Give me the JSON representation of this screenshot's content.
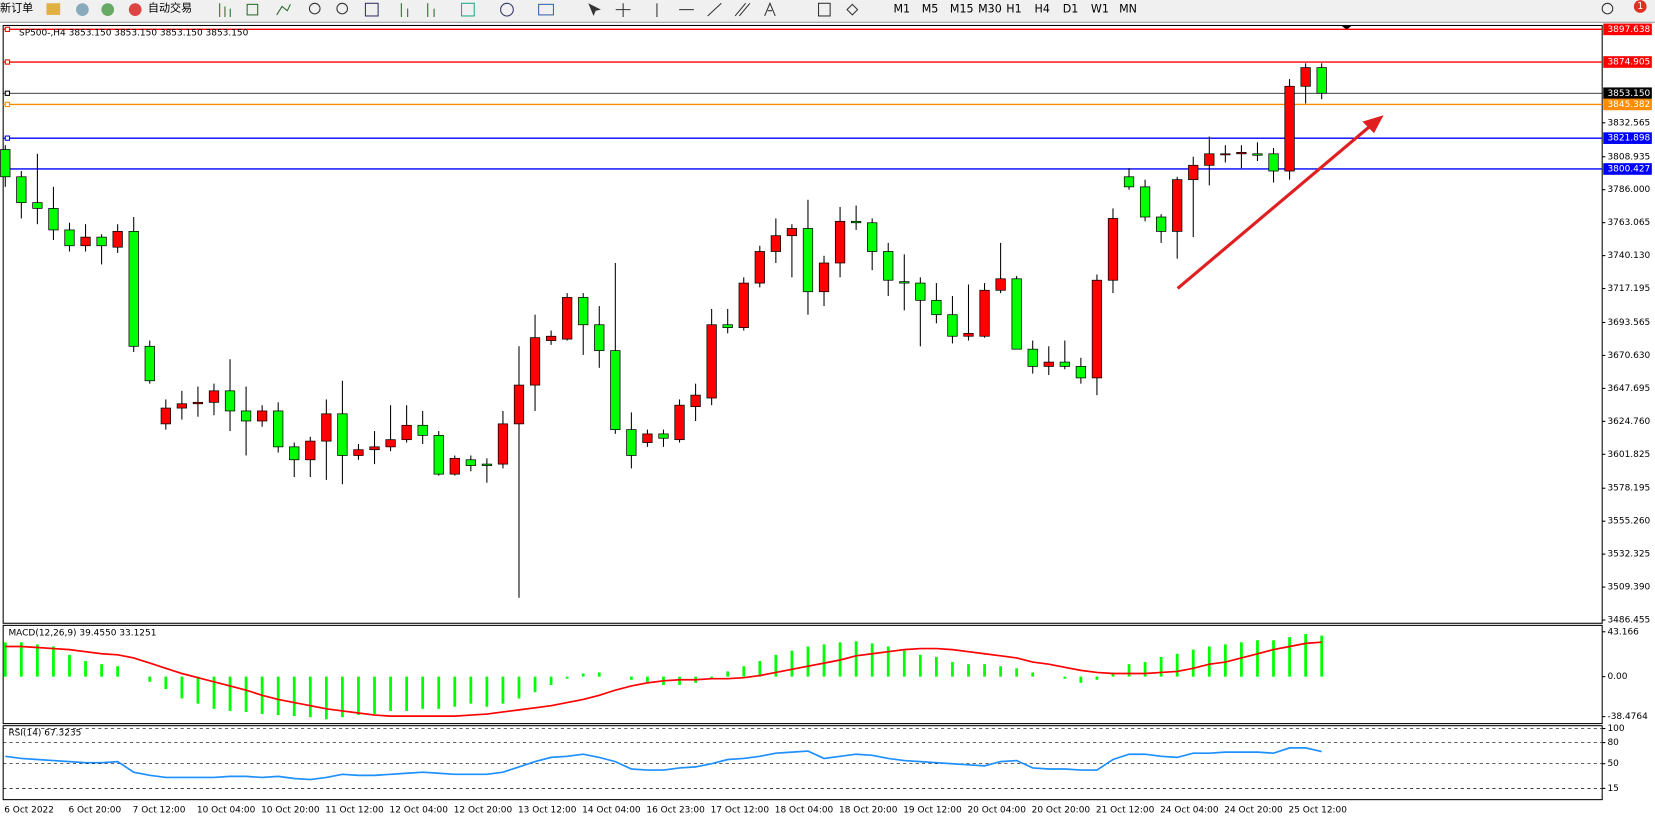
{
  "toolbar": {
    "new_order": "新订单",
    "auto_trading": "自动交易",
    "timeframes": [
      "M1",
      "M5",
      "M15",
      "M30",
      "H1",
      "H4",
      "D1",
      "W1",
      "MN"
    ],
    "notifications": "1"
  },
  "chart_data": [
    {
      "type": "candlestick",
      "title": "SP500-,H4  3853.150 3853.150 3853.150 3853.150",
      "categories": [
        "6 Oct 2022",
        null,
        null,
        null,
        "6 Oct 20:00",
        null,
        null,
        null,
        "7 Oct 12:00",
        null,
        null,
        null,
        "10 Oct 04:00",
        null,
        null,
        null,
        "10 Oct 20:00",
        null,
        null,
        null,
        "11 Oct 12:00",
        null,
        null,
        null,
        "12 Oct 04:00",
        null,
        null,
        null,
        "12 Oct 20:00",
        null,
        null,
        null,
        "13 Oct 12:00",
        null,
        null,
        null,
        "14 Oct 04:00",
        null,
        null,
        null,
        "16 Oct 23:00",
        null,
        null,
        null,
        "17 Oct 12:00",
        null,
        null,
        null,
        "18 Oct 04:00",
        null,
        null,
        null,
        "18 Oct 20:00",
        null,
        null,
        null,
        "19 Oct 12:00",
        null,
        null,
        null,
        "20 Oct 04:00",
        null,
        null,
        null,
        "20 Oct 20:00",
        null,
        null,
        null,
        "21 Oct 12:00",
        null,
        null,
        null,
        "24 Oct 04:00",
        null,
        null,
        null,
        "24 Oct 20:00",
        null,
        null,
        null,
        "25 Oct 12:00",
        null,
        null
      ],
      "open": [
        3814,
        3795,
        3777,
        3773,
        3758,
        3747,
        3753,
        3746,
        3757,
        3677,
        3623,
        3634,
        3637,
        3638,
        3646,
        3632,
        3625,
        3632,
        3607,
        3598,
        3611,
        3630,
        3601,
        3605,
        3607,
        3612,
        3622,
        3615,
        3588,
        3598,
        3595,
        3595,
        3623,
        3650,
        3681,
        3682,
        3711,
        3692,
        3674,
        3619,
        3610,
        3616,
        3612,
        3635,
        3641,
        3692,
        3690,
        3721,
        3743,
        3754,
        3759,
        3715,
        3735,
        3764,
        3763,
        3743,
        3722,
        3721,
        3709,
        3699,
        3684,
        3684,
        3716,
        3724,
        3675,
        3663,
        3666,
        3663,
        3655,
        3723,
        3795,
        3788,
        3767,
        3757,
        3793,
        3803,
        3811,
        3811,
        3811,
        3811,
        3799,
        3858,
        3871
      ],
      "high": [
        3817,
        3799,
        3811,
        3788,
        3763,
        3762,
        3755,
        3762,
        3767,
        3681,
        3640,
        3646,
        3649,
        3651,
        3668,
        3649,
        3636,
        3638,
        3610,
        3614,
        3640,
        3653,
        3609,
        3618,
        3636,
        3636,
        3632,
        3618,
        3601,
        3601,
        3599,
        3632,
        3677,
        3699,
        3688,
        3714,
        3714,
        3705,
        3735,
        3631,
        3619,
        3619,
        3640,
        3651,
        3703,
        3703,
        3725,
        3747,
        3766,
        3762,
        3779,
        3740,
        3774,
        3775,
        3766,
        3749,
        3741,
        3725,
        3721,
        3712,
        3720,
        3721,
        3749,
        3726,
        3681,
        3677,
        3681,
        3669,
        3727,
        3773,
        3801,
        3793,
        3769,
        3795,
        3809,
        3823,
        3817,
        3817,
        3819,
        3815,
        3863,
        3874,
        3874
      ],
      "low": [
        3788,
        3766,
        3762,
        3751,
        3743,
        3743,
        3734,
        3742,
        3673,
        3651,
        3619,
        3626,
        3628,
        3629,
        3618,
        3601,
        3621,
        3603,
        3586,
        3586,
        3584,
        3581,
        3598,
        3595,
        3604,
        3610,
        3609,
        3587,
        3587,
        3590,
        3582,
        3592,
        3502,
        3632,
        3678,
        3681,
        3671,
        3662,
        3616,
        3592,
        3607,
        3607,
        3610,
        3625,
        3636,
        3686,
        3688,
        3718,
        3735,
        3725,
        3699,
        3705,
        3725,
        3758,
        3730,
        3712,
        3702,
        3677,
        3693,
        3679,
        3681,
        3683,
        3714,
        3675,
        3658,
        3657,
        3661,
        3651,
        3643,
        3714,
        3786,
        3764,
        3749,
        3738,
        3753,
        3789,
        3805,
        3801,
        3806,
        3791,
        3793,
        3846,
        3849
      ],
      "close": [
        3795,
        3777,
        3773,
        3758,
        3747,
        3753,
        3747,
        3757,
        3677,
        3653,
        3634,
        3637,
        3638,
        3646,
        3632,
        3625,
        3632,
        3607,
        3598,
        3611,
        3630,
        3601,
        3605,
        3607,
        3612,
        3622,
        3615,
        3588,
        3599,
        3594,
        3594,
        3623,
        3650,
        3683,
        3684,
        3711,
        3692,
        3674,
        3619,
        3601,
        3616,
        3613,
        3636,
        3643,
        3692,
        3690,
        3721,
        3743,
        3754,
        3759,
        3715,
        3735,
        3764,
        3763,
        3743,
        3723,
        3721,
        3709,
        3699,
        3684,
        3686,
        3716,
        3724,
        3675,
        3663,
        3666,
        3663,
        3655,
        3723,
        3766,
        3788,
        3767,
        3757,
        3793,
        3803,
        3811,
        3811,
        3812,
        3810,
        3799,
        3858,
        3871,
        3853.15
      ],
      "colors": {
        "up": "#ff0000",
        "down": "#00ff00",
        "wick": "#000000"
      },
      "ylim": [
        3484.2,
        3899.6
      ],
      "yticks": [
        3832.565,
        3808.935,
        {
          "value": 3786,
          "label": "3786.000"
        },
        3763.065,
        {
          "value": 3740.13,
          "label": "3740.130"
        },
        3717.195,
        3693.565,
        {
          "value": 3670.63,
          "label": "3670.630"
        },
        3647.695,
        {
          "value": 3624.76,
          "label": "3624.760"
        },
        3601.825,
        3578.195,
        {
          "value": 3555.26,
          "label": "3555.260"
        },
        3532.325,
        {
          "value": 3509.39,
          "label": "3509.390"
        },
        3486.455
      ],
      "hlines": [
        {
          "value": 3897.638,
          "color": "#ff0000"
        },
        {
          "value": 3874.905,
          "color": "#ff0000"
        },
        {
          "value": 3853.15,
          "label": "3853.150",
          "color": "#000000"
        },
        {
          "value": 3845.382,
          "color": "#ff8c00"
        },
        {
          "value": 3821.898,
          "color": "#0000ff"
        },
        {
          "value": 3800.427,
          "color": "#0000ff"
        }
      ]
    },
    {
      "type": "macd",
      "title": "MACD(12,26,9) 39.4550 33.1251",
      "series": [
        {
          "style": "bar",
          "color": "#00ff00",
          "values": [
            33,
            33,
            31,
            29,
            21,
            15,
            12,
            10,
            0,
            -5,
            -12,
            -21,
            -26,
            -31,
            -33,
            -34,
            -36,
            -37,
            -38,
            -39,
            -41,
            -39,
            -37,
            -36,
            -33,
            -33,
            -31,
            -31,
            -29,
            -26,
            -29,
            -26,
            -21,
            -15,
            -8,
            -2,
            3,
            4,
            0,
            -3,
            -5,
            -8,
            -8,
            -6,
            -2,
            5,
            10,
            15,
            21,
            25,
            29,
            31,
            33,
            34,
            32,
            29,
            25,
            21,
            19,
            14,
            12,
            12,
            10,
            8,
            4,
            0,
            -2,
            -6,
            -3,
            4,
            12,
            14,
            19,
            22,
            26,
            29,
            31,
            33,
            35,
            35,
            38,
            41,
            39.455
          ]
        },
        {
          "style": "line",
          "color": "#ff0000",
          "values": [
            29,
            29,
            28,
            27,
            26,
            24,
            22,
            21,
            18,
            13,
            8,
            3,
            -1,
            -5,
            -9,
            -13,
            -18,
            -22,
            -25,
            -28,
            -31,
            -33,
            -35,
            -37,
            -38,
            -38,
            -38,
            -38,
            -38,
            -37,
            -36,
            -34,
            -32,
            -30,
            -28,
            -25,
            -22,
            -18,
            -13,
            -9,
            -6,
            -4,
            -3,
            -3,
            -2,
            -2,
            -1,
            1,
            4,
            7,
            10,
            13,
            16,
            20,
            22,
            24,
            26,
            27,
            27,
            26,
            24,
            22,
            20,
            18,
            14,
            12,
            9,
            6,
            4,
            3,
            3,
            3,
            4,
            5,
            8,
            12,
            14,
            18,
            22,
            26,
            29,
            32,
            33.1251
          ]
        }
      ],
      "ylim": [
        -45.2,
        48.3
      ],
      "yticks": [
        43.166,
        {
          "value": 0,
          "label": "0.00"
        },
        -38.4764
      ]
    },
    {
      "type": "line",
      "title": "RSI(14) 67.3235",
      "series": [
        {
          "color": "#1e90ff",
          "values": [
            60.5,
            57.5,
            56,
            54.5,
            53,
            51.5,
            51.5,
            53,
            38,
            33.5,
            30.5,
            30.5,
            30.5,
            30.5,
            32,
            32,
            30.5,
            32,
            29,
            27.5,
            30.5,
            35,
            33.5,
            33.5,
            35,
            36.5,
            38,
            36.5,
            35,
            35,
            35,
            38,
            45.5,
            53,
            59,
            60.5,
            63.5,
            59,
            53,
            42.5,
            41,
            41,
            44,
            45.5,
            50,
            56,
            57.5,
            60.5,
            65,
            66.5,
            68,
            57.5,
            60.5,
            63.5,
            62,
            57.5,
            54.5,
            53,
            51.5,
            50,
            48.5,
            47,
            53,
            54.5,
            44,
            42.5,
            42.5,
            41,
            41,
            56,
            63.5,
            63.5,
            60.5,
            59,
            65,
            65,
            66.5,
            66.5,
            66.5,
            65,
            72.5,
            72.5,
            67.3235
          ]
        }
      ],
      "ylim": [
        -1,
        102.5
      ],
      "yticks": [
        100,
        80,
        50,
        15
      ],
      "grid": true
    }
  ]
}
